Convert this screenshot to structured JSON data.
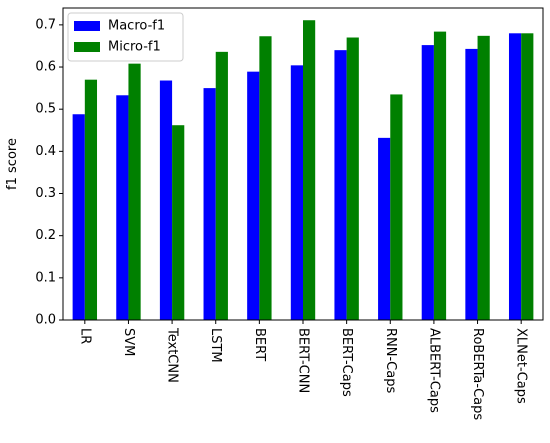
{
  "chart_data": {
    "type": "bar",
    "categories": [
      "LR",
      "SVM",
      "TextCNN",
      "LSTM",
      "BERT",
      "BERT-CNN",
      "BERT-Caps",
      "RNN-Caps",
      "ALBERT-Caps",
      "RoBERTa-Caps",
      "XLNet-Caps"
    ],
    "series": [
      {
        "name": "Macro-f1",
        "color": "#0000ff",
        "values": [
          0.488,
          0.533,
          0.568,
          0.55,
          0.589,
          0.604,
          0.64,
          0.432,
          0.652,
          0.643,
          0.68
        ]
      },
      {
        "name": "Micro-f1",
        "color": "#008000",
        "values": [
          0.57,
          0.608,
          0.462,
          0.636,
          0.673,
          0.711,
          0.67,
          0.535,
          0.684,
          0.674,
          0.68
        ]
      }
    ],
    "title": "",
    "xlabel": "",
    "ylabel": "f1 score",
    "ylim": [
      0.0,
      0.74
    ],
    "yticks": [
      "0.0",
      "0.1",
      "0.2",
      "0.3",
      "0.4",
      "0.5",
      "0.6",
      "0.7"
    ],
    "legend_position": "top-left",
    "grid": false
  }
}
